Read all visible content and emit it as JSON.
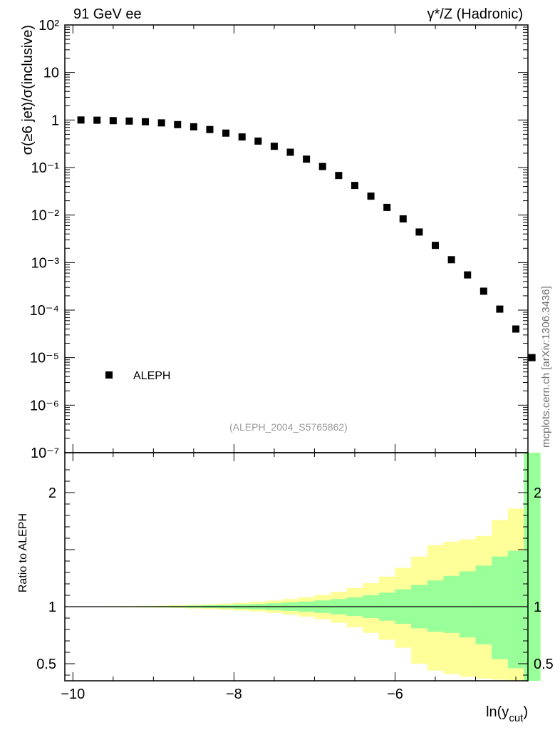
{
  "header": {
    "left_label": "91 GeV ee",
    "right_label": "γ*/Z (Hadronic)"
  },
  "watermark": "mcplots.cern.ch [arXiv:1306.3436]",
  "analysis_ref": "(ALEPH_2004_S5765862)",
  "chart_data": [
    {
      "type": "scatter",
      "ylabel": "σ(≥6 jet)/σ(inclusive)",
      "yscale": "log",
      "ylim": [
        1e-07,
        100
      ],
      "xlim": [
        -10.1,
        -4.35
      ],
      "yticks": [
        "10²",
        "10",
        "1",
        "10⁻¹",
        "10⁻²",
        "10⁻³",
        "10⁻⁴",
        "10⁻⁵",
        "10⁻⁶",
        "10⁻⁷"
      ],
      "legend": {
        "placement": "bottom-left",
        "entries": [
          "ALEPH"
        ]
      },
      "series": [
        {
          "name": "ALEPH",
          "marker": "square",
          "color": "#000000",
          "x": [
            -9.9,
            -9.7,
            -9.5,
            -9.3,
            -9.1,
            -8.9,
            -8.7,
            -8.5,
            -8.3,
            -8.1,
            -7.9,
            -7.7,
            -7.5,
            -7.3,
            -7.1,
            -6.9,
            -6.7,
            -6.5,
            -6.3,
            -6.1,
            -5.9,
            -5.7,
            -5.5,
            -5.3,
            -5.1,
            -4.9,
            -4.7,
            -4.5
          ],
          "y": [
            1.0,
            0.99,
            0.97,
            0.95,
            0.92,
            0.87,
            0.8,
            0.72,
            0.63,
            0.53,
            0.44,
            0.36,
            0.28,
            0.21,
            0.15,
            0.105,
            0.068,
            0.042,
            0.025,
            0.0145,
            0.0083,
            0.0044,
            0.0023,
            0.00115,
            0.00055,
            0.00025,
            0.000105,
            4e-05
          ]
        },
        {
          "name": "",
          "marker": "square",
          "color": "#000000",
          "x": [
            -4.3
          ],
          "y": [
            1e-05
          ]
        }
      ]
    },
    {
      "type": "area",
      "ylabel": "Ratio to ALEPH",
      "xlabel": "ln(y_cut)",
      "xlim": [
        -10.1,
        -4.35
      ],
      "ylim": [
        0.35,
        2.35
      ],
      "xticks": [
        "−10",
        "−8",
        "−6"
      ],
      "yticks": [
        "0.5",
        "1",
        "2"
      ],
      "reference_line": 1.0,
      "bin_edges": [
        -10.0,
        -9.8,
        -9.6,
        -9.4,
        -9.2,
        -9.0,
        -8.8,
        -8.6,
        -8.4,
        -8.2,
        -8.0,
        -7.8,
        -7.6,
        -7.4,
        -7.2,
        -7.0,
        -6.8,
        -6.6,
        -6.4,
        -6.2,
        -6.0,
        -5.8,
        -5.6,
        -5.4,
        -5.2,
        -5.0,
        -4.8,
        -4.6,
        -4.4,
        -4.2
      ],
      "bands": [
        {
          "name": "",
          "color": "#ffff99",
          "upper": [
            1.002,
            1.003,
            1.004,
            1.005,
            1.007,
            1.009,
            1.012,
            1.016,
            1.021,
            1.027,
            1.034,
            1.043,
            1.053,
            1.067,
            1.083,
            1.104,
            1.13,
            1.164,
            1.206,
            1.264,
            1.34,
            1.44,
            1.54,
            1.57,
            1.59,
            1.62,
            1.76,
            1.86,
            1.9
          ],
          "lower": [
            0.998,
            0.997,
            0.996,
            0.995,
            0.993,
            0.991,
            0.988,
            0.984,
            0.979,
            0.973,
            0.966,
            0.957,
            0.945,
            0.93,
            0.912,
            0.89,
            0.86,
            0.82,
            0.77,
            0.71,
            0.64,
            0.5,
            0.44,
            0.41,
            0.385,
            0.37,
            0.36,
            0.35,
            0.35
          ]
        },
        {
          "name": "",
          "color": "#99ff99",
          "upper": [
            1.001,
            1.0015,
            1.002,
            1.003,
            1.004,
            1.005,
            1.007,
            1.009,
            1.012,
            1.015,
            1.019,
            1.024,
            1.03,
            1.037,
            1.045,
            1.055,
            1.067,
            1.082,
            1.1,
            1.123,
            1.152,
            1.19,
            1.23,
            1.27,
            1.31,
            1.36,
            1.44,
            1.49,
            2.35
          ],
          "lower": [
            0.999,
            0.9985,
            0.998,
            0.997,
            0.996,
            0.995,
            0.993,
            0.991,
            0.988,
            0.985,
            0.981,
            0.976,
            0.97,
            0.963,
            0.955,
            0.945,
            0.933,
            0.918,
            0.9,
            0.877,
            0.85,
            0.81,
            0.78,
            0.77,
            0.73,
            0.67,
            0.54,
            0.46,
            0.35
          ]
        }
      ]
    }
  ]
}
